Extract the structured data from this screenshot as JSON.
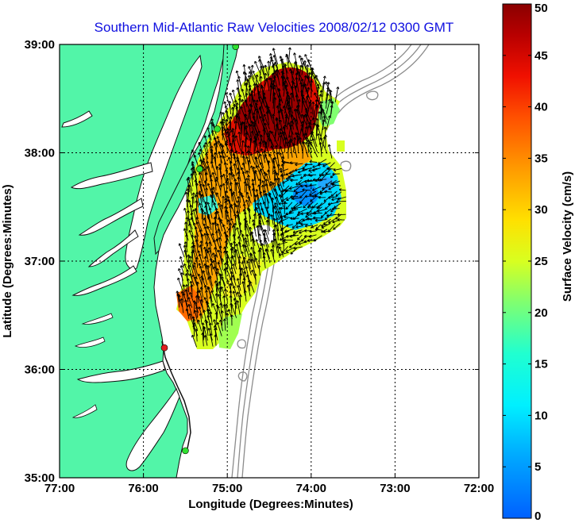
{
  "title": "Southern Mid-Atlantic Raw Velocities 2008/02/12 0300 GMT",
  "chart_data": {
    "type": "heatmap",
    "title": "Southern Mid-Atlantic Raw Velocities 2008/02/12 0300 GMT",
    "xlabel": "Longitude (Degrees:Minutes)",
    "ylabel": "Latitude (Degrees:Minutes)",
    "x_ticks": [
      "77:00",
      "76:00",
      "75:00",
      "74:00",
      "73:00",
      "72:00"
    ],
    "y_ticks": [
      "39:00",
      "38:00",
      "37:00",
      "36:00",
      "35:00"
    ],
    "xlim": [
      -77,
      -72
    ],
    "ylim": [
      35,
      39
    ],
    "grid": true,
    "colorbar": {
      "label": "Surface Velocity (cm/s)",
      "ticks": [
        "50",
        "45",
        "40",
        "35",
        "30",
        "25",
        "20",
        "15",
        "10",
        "5",
        "0"
      ],
      "range": [
        0,
        50
      ],
      "colormap": "jet"
    },
    "stations": [
      {
        "lon": -74.9,
        "lat": 38.98,
        "color": "#30e030"
      },
      {
        "lon": -75.12,
        "lat": 38.22,
        "color": "#30e030"
      },
      {
        "lon": -75.33,
        "lat": 37.85,
        "color": "#30e030"
      },
      {
        "lon": -75.75,
        "lat": 36.2,
        "color": "#e02020"
      },
      {
        "lon": -75.5,
        "lat": 35.25,
        "color": "#30e030"
      }
    ]
  },
  "colors": {
    "land": "#52f5a8",
    "coast": "#101010",
    "bathymetry": "#8c8c8c",
    "title": "#1010e0"
  }
}
